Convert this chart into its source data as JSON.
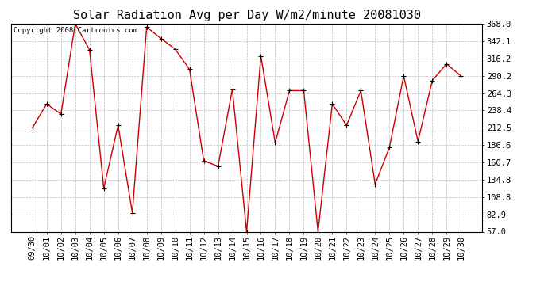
{
  "title": "Solar Radiation Avg per Day W/m2/minute 20081030",
  "copyright_text": "Copyright 2008 Cartronics.com",
  "x_labels": [
    "09/30",
    "10/01",
    "10/02",
    "10/03",
    "10/04",
    "10/05",
    "10/06",
    "10/07",
    "10/08",
    "10/09",
    "10/10",
    "10/11",
    "10/12",
    "10/13",
    "10/14",
    "10/15",
    "10/16",
    "10/17",
    "10/18",
    "10/19",
    "10/20",
    "10/21",
    "10/22",
    "10/23",
    "10/24",
    "10/25",
    "10/26",
    "10/27",
    "10/28",
    "10/29",
    "10/30"
  ],
  "y_values": [
    212.5,
    248.0,
    233.0,
    368.0,
    329.0,
    122.0,
    216.0,
    85.0,
    363.0,
    346.0,
    330.0,
    300.0,
    163.0,
    155.0,
    270.0,
    57.0,
    320.0,
    190.0,
    268.0,
    268.0,
    57.0,
    248.0,
    216.0,
    268.0,
    128.0,
    183.0,
    290.0,
    192.0,
    283.0,
    308.0,
    290.0
  ],
  "line_color": "#cc0000",
  "marker_color": "#000000",
  "bg_color": "#ffffff",
  "plot_bg_color": "#ffffff",
  "grid_color": "#bbbbbb",
  "title_fontsize": 11,
  "annotation_fontsize": 6.5,
  "tick_fontsize": 7.5,
  "ylim": [
    57.0,
    368.0
  ],
  "yticks": [
    57.0,
    82.9,
    108.8,
    134.8,
    160.7,
    186.6,
    212.5,
    238.4,
    264.3,
    290.2,
    316.2,
    342.1,
    368.0
  ]
}
